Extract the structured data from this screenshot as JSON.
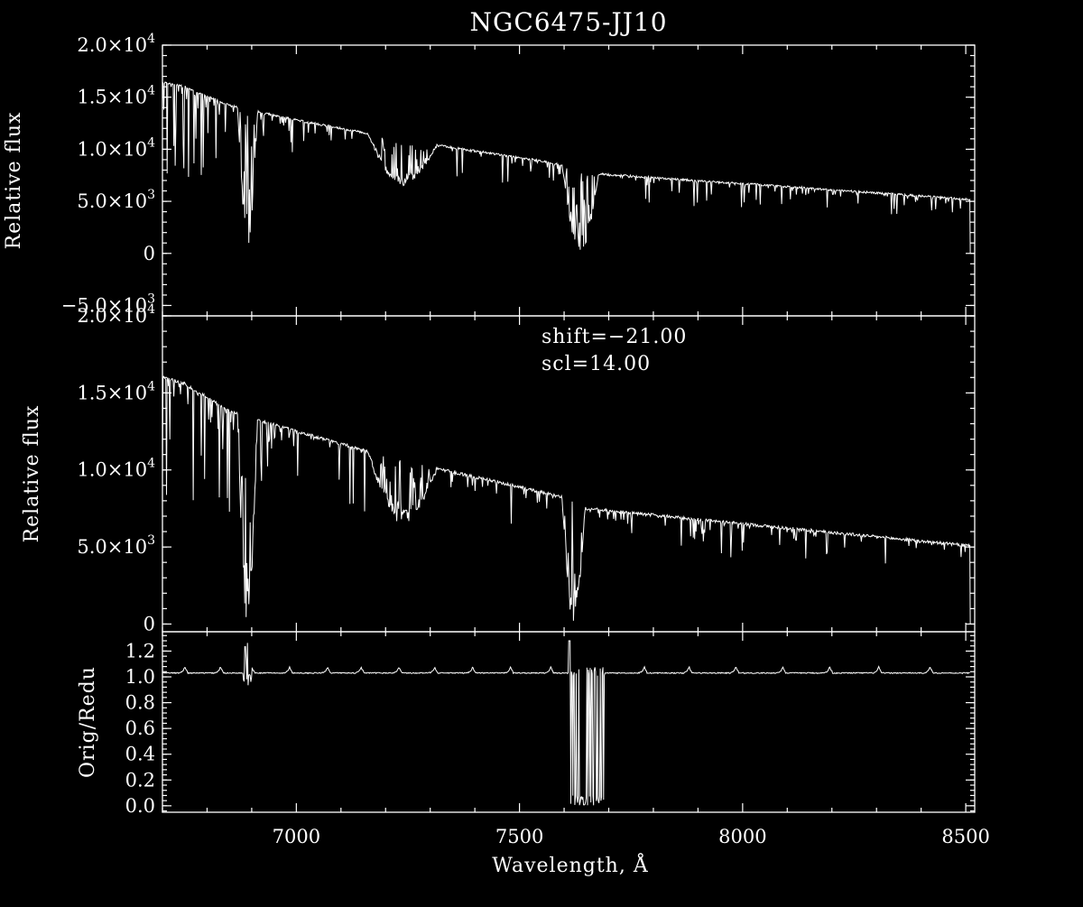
{
  "title": "NGC6475-JJ10",
  "xlabel": "Wavelength, Å",
  "colors": {
    "background": "#000000",
    "foreground": "#ffffff"
  },
  "chart_data": [
    {
      "type": "line",
      "panel": "top",
      "ylabel": "Relative flux",
      "xlim": [
        6700,
        8520
      ],
      "ylim": [
        -6000,
        20000
      ],
      "x_ticks": [
        7000,
        7500,
        8000,
        8500
      ],
      "y_ticks": [
        {
          "value": 20000,
          "mantissa": "2.0×10",
          "exp": "4"
        },
        {
          "value": 15000,
          "mantissa": "1.5×10",
          "exp": "4"
        },
        {
          "value": 10000,
          "mantissa": "1.0×10",
          "exp": "4"
        },
        {
          "value": 5000,
          "mantissa": "5.0×10",
          "exp": "3"
        },
        {
          "value": 0,
          "mantissa": "0",
          "exp": ""
        },
        {
          "value": -5000,
          "mantissa": "−5.0×10",
          "exp": "3"
        }
      ],
      "continuum": {
        "x": [
          6700,
          6750,
          6850,
          7000,
          7250,
          7500,
          7600,
          7650,
          8000,
          8500
        ],
        "y": [
          16400,
          16000,
          14200,
          12800,
          10800,
          9200,
          8500,
          7700,
          6700,
          5200
        ]
      },
      "bands": [
        {
          "x0": 6868,
          "x1": 6920,
          "min": 400
        },
        {
          "x0": 7595,
          "x1": 7690,
          "min": 0
        },
        {
          "x0": 7160,
          "x1": 7340,
          "min": 6500
        }
      ]
    },
    {
      "type": "line",
      "panel": "middle",
      "ylabel": "Relative flux",
      "annotations": [
        "shift=−21.00",
        "scl=14.00"
      ],
      "xlim": [
        6700,
        8520
      ],
      "ylim": [
        -500,
        20000
      ],
      "x_ticks": [
        7000,
        7500,
        8000,
        8500
      ],
      "y_ticks": [
        {
          "value": 20000,
          "mantissa": "2.0×10",
          "exp": "4"
        },
        {
          "value": 15000,
          "mantissa": "1.5×10",
          "exp": "4"
        },
        {
          "value": 10000,
          "mantissa": "1.0×10",
          "exp": "4"
        },
        {
          "value": 5000,
          "mantissa": "5.0×10",
          "exp": "3"
        },
        {
          "value": 0,
          "mantissa": "0",
          "exp": ""
        }
      ],
      "continuum": {
        "x": [
          6700,
          6750,
          6850,
          7000,
          7250,
          7500,
          7600,
          7650,
          8000,
          8500
        ],
        "y": [
          16000,
          15600,
          13800,
          12500,
          10500,
          8900,
          8200,
          7500,
          6500,
          5100
        ]
      },
      "bands": [
        {
          "x0": 6868,
          "x1": 6920,
          "min": 0
        },
        {
          "x0": 7595,
          "x1": 7655,
          "min": 0
        },
        {
          "x0": 7160,
          "x1": 7340,
          "min": 6500
        }
      ]
    },
    {
      "type": "line",
      "panel": "bottom",
      "ylabel": "Orig/Redu",
      "xlim": [
        6700,
        8520
      ],
      "ylim": [
        -0.05,
        1.35
      ],
      "x_ticks": [
        7000,
        7500,
        8000,
        8500
      ],
      "y_ticks": [
        {
          "value": 1.2,
          "mantissa": "1.2",
          "exp": ""
        },
        {
          "value": 1.0,
          "mantissa": "1.0",
          "exp": ""
        },
        {
          "value": 0.8,
          "mantissa": "0.8",
          "exp": ""
        },
        {
          "value": 0.6,
          "mantissa": "0.6",
          "exp": ""
        },
        {
          "value": 0.4,
          "mantissa": "0.4",
          "exp": ""
        },
        {
          "value": 0.2,
          "mantissa": "0.2",
          "exp": ""
        },
        {
          "value": 0.0,
          "mantissa": "0.0",
          "exp": ""
        }
      ],
      "baseline": 1.03,
      "ripple_peaks": [
        6750,
        6830,
        6900,
        6985,
        7070,
        7145,
        7230,
        7310,
        7395,
        7480,
        7570,
        7780,
        7880,
        7985,
        8090,
        8195,
        8305,
        8420
      ],
      "dropout": {
        "x0": 7610,
        "x1": 7690,
        "min": 0.0
      },
      "spike": {
        "x": 6890,
        "max": 1.28
      }
    }
  ]
}
